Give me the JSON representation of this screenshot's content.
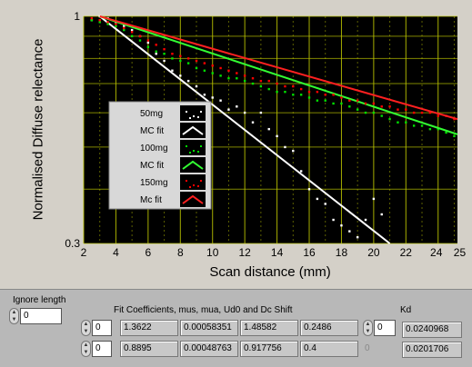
{
  "chart_data": {
    "type": "scatter",
    "ylabel": "Normalised Diffuse relectance",
    "xlabel": "Scan distance (mm)",
    "xlim": [
      2,
      25.2
    ],
    "ylim": [
      0.3,
      1
    ],
    "y_scale": "log",
    "x_ticks": [
      "2",
      "4",
      "6",
      "8",
      "10",
      "12",
      "14",
      "16",
      "18",
      "20",
      "22",
      "24",
      "25"
    ],
    "y_ticks": [
      "1",
      "0.3"
    ],
    "grid": true,
    "legend_position": "middle-left",
    "series": [
      {
        "name": "50mg",
        "style": "points",
        "color": "#ffffff",
        "x": [
          2.5,
          3,
          3.5,
          4,
          4.5,
          5,
          5.5,
          6,
          6.5,
          7,
          7.5,
          8,
          8.5,
          9,
          9.5,
          10,
          10.5,
          11,
          11.5,
          12,
          12.5,
          13,
          13.5,
          14,
          14.5,
          15,
          15.5,
          16,
          16.5,
          17,
          17.5,
          18,
          18.5,
          19,
          19.5,
          20,
          20.5
        ],
        "y": [
          0.98,
          1.0,
          0.99,
          0.97,
          0.95,
          0.93,
          0.9,
          0.87,
          0.82,
          0.79,
          0.75,
          0.73,
          0.71,
          0.69,
          0.66,
          0.65,
          0.64,
          0.61,
          0.62,
          0.6,
          0.57,
          0.6,
          0.55,
          0.53,
          0.5,
          0.49,
          0.44,
          0.4,
          0.38,
          0.37,
          0.34,
          0.33,
          0.32,
          0.31,
          0.34,
          0.38,
          0.35
        ]
      },
      {
        "name": "MC fit",
        "style": "line",
        "color": "#ffffff",
        "x": [
          3,
          21
        ],
        "y": [
          1.0,
          0.3
        ]
      },
      {
        "name": "100mg",
        "style": "points",
        "color": "#00e000",
        "x": [
          2.5,
          3,
          3.5,
          4,
          4.5,
          5,
          5.5,
          6,
          6.5,
          7,
          7.5,
          8,
          8.5,
          9,
          9.5,
          10,
          10.5,
          11,
          11.5,
          12,
          12.5,
          13,
          13.5,
          14,
          14.5,
          15,
          15.5,
          16,
          16.5,
          17,
          17.5,
          18,
          18.5,
          19,
          19.5,
          20,
          20.5,
          21,
          21.5,
          22,
          22.5,
          23,
          23.5,
          24,
          24.5,
          25
        ],
        "y": [
          0.98,
          0.97,
          0.96,
          0.95,
          0.93,
          0.9,
          0.88,
          0.85,
          0.83,
          0.82,
          0.8,
          0.79,
          0.78,
          0.76,
          0.75,
          0.74,
          0.73,
          0.72,
          0.72,
          0.71,
          0.7,
          0.69,
          0.68,
          0.67,
          0.67,
          0.66,
          0.66,
          0.65,
          0.64,
          0.64,
          0.63,
          0.63,
          0.62,
          0.61,
          0.6,
          0.6,
          0.59,
          0.58,
          0.57,
          0.57,
          0.56,
          0.56,
          0.55,
          0.55,
          0.54,
          0.53
        ]
      },
      {
        "name": "MC fit",
        "style": "line",
        "color": "#33ff33",
        "x": [
          3,
          25.2
        ],
        "y": [
          1.0,
          0.535
        ]
      },
      {
        "name": "150mg",
        "style": "points",
        "color": "#ff0000",
        "x": [
          2.5,
          3,
          3.5,
          4,
          4.5,
          5,
          5.5,
          6,
          6.5,
          7,
          7.5,
          8,
          8.5,
          9,
          9.5,
          10,
          10.5,
          11,
          11.5,
          12,
          12.5,
          13,
          13.5,
          14,
          14.5,
          15,
          15.5,
          16,
          16.5,
          17,
          17.5,
          18,
          18.5,
          19,
          19.5,
          20,
          20.5,
          21,
          21.5,
          22,
          22.5,
          23,
          23.5,
          24,
          24.5,
          25
        ],
        "y": [
          0.99,
          0.98,
          0.97,
          0.96,
          0.94,
          0.92,
          0.9,
          0.88,
          0.86,
          0.84,
          0.82,
          0.81,
          0.8,
          0.79,
          0.78,
          0.77,
          0.76,
          0.75,
          0.74,
          0.73,
          0.72,
          0.71,
          0.71,
          0.7,
          0.69,
          0.69,
          0.68,
          0.67,
          0.67,
          0.66,
          0.66,
          0.65,
          0.64,
          0.64,
          0.63,
          0.63,
          0.62,
          0.62,
          0.61,
          0.61,
          0.6,
          0.6,
          0.6,
          0.59,
          0.59,
          0.58
        ]
      },
      {
        "name": "Mc fit",
        "style": "line",
        "color": "#ff2020",
        "x": [
          3,
          25.2
        ],
        "y": [
          1.0,
          0.58
        ]
      }
    ]
  },
  "controls": {
    "ignore_length_label": "Ignore length",
    "ignore_length_value": "0",
    "fit_coeff_label": "Fit Coefficients, mus, mua, Ud0 and Dc Shift",
    "kd_label": "Kd",
    "rows": [
      {
        "index": "0",
        "values": [
          "1.3622",
          "0.00058351",
          "1.48582",
          "0.2486"
        ],
        "kd_index": "0",
        "kd": "0.0240968"
      },
      {
        "index": "0",
        "values": [
          "0.8895",
          "0.00048763",
          "0.917756",
          "0.4"
        ],
        "kd_index": "0",
        "kd": "0.0201706"
      }
    ]
  }
}
